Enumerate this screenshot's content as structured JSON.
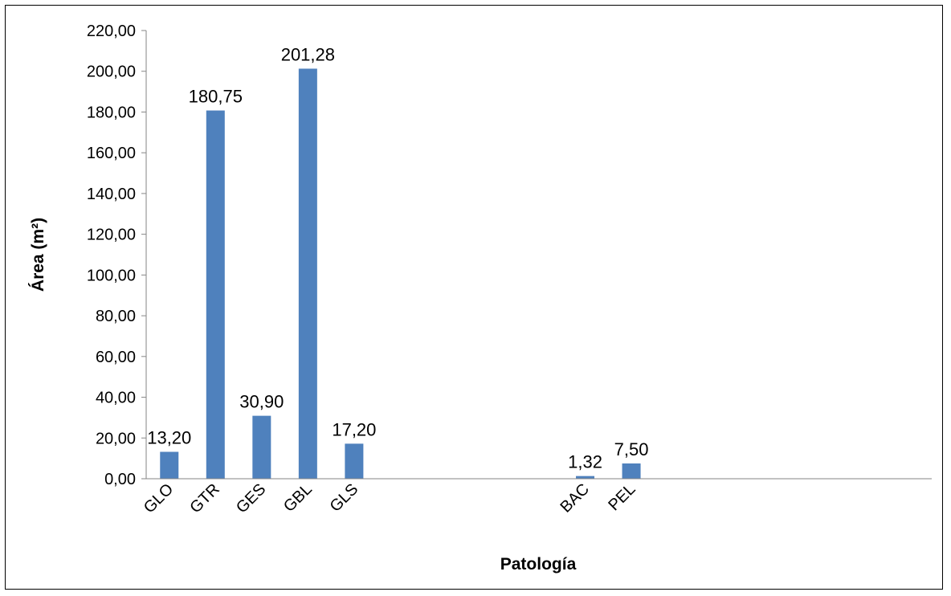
{
  "chart_data": {
    "type": "bar",
    "title": "",
    "xlabel": "Patología",
    "ylabel": "Área (m²)",
    "ylim": [
      0,
      220
    ],
    "yticks": [
      0,
      20,
      40,
      60,
      80,
      100,
      120,
      140,
      160,
      180,
      200,
      220
    ],
    "ytick_labels": [
      "0,00",
      "20,00",
      "40,00",
      "60,00",
      "80,00",
      "100,00",
      "120,00",
      "140,00",
      "160,00",
      "180,00",
      "200,00",
      "220,00"
    ],
    "categories": [
      "GLO",
      "GTR",
      "GES",
      "GBL",
      "GLS",
      "",
      "",
      "",
      "",
      "BAC",
      "PEL",
      "",
      "",
      "",
      "",
      "",
      ""
    ],
    "values": [
      13.2,
      180.75,
      30.9,
      201.28,
      17.2,
      null,
      null,
      null,
      null,
      1.32,
      7.5,
      null,
      null,
      null,
      null,
      null,
      null
    ],
    "data_labels": [
      "13,20",
      "180,75",
      "30,90",
      "201,28",
      "17,20",
      "",
      "",
      "",
      "",
      "1,32",
      "7,50",
      "",
      "",
      "",
      "",
      "",
      ""
    ],
    "bar_color": "#4F81BD",
    "grid": false,
    "legend": "none"
  }
}
